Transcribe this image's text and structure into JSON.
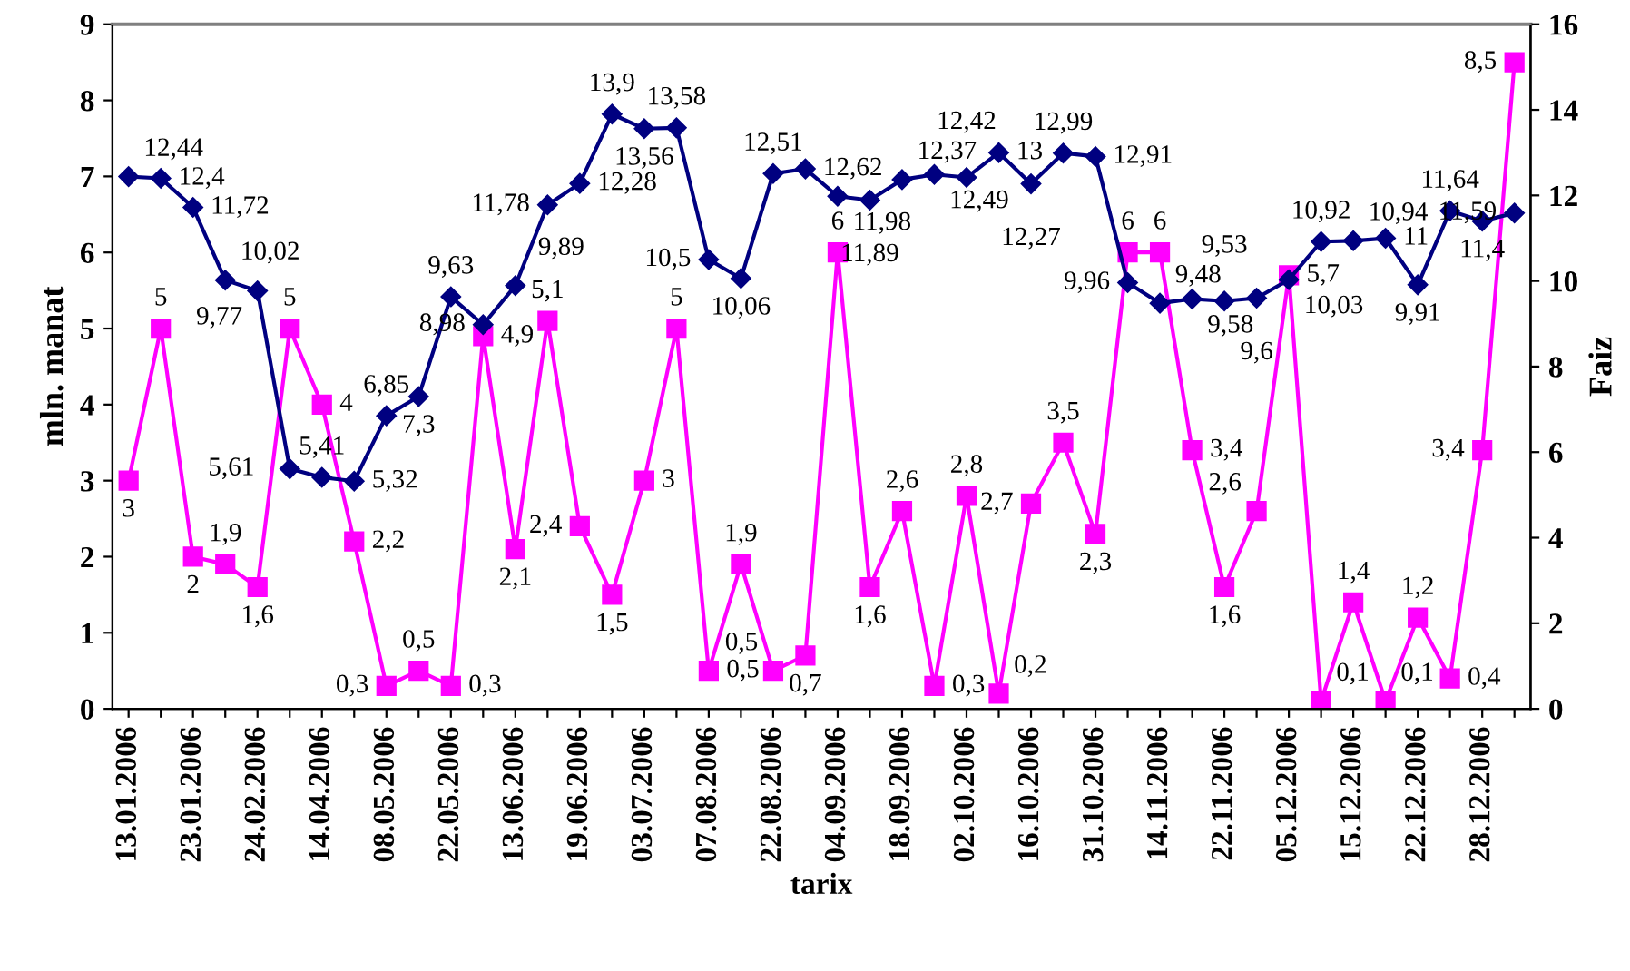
{
  "chart_data": {
    "type": "line",
    "xlabel": "tarix",
    "ylabel": "mln. manat",
    "y2label": "Faiz",
    "categories": [
      "13.01.2006",
      null,
      "23.01.2006",
      null,
      "24.02.2006",
      null,
      "14.04.2006",
      null,
      "08.05.2006",
      null,
      "22.05.2006",
      null,
      "13.06.2006",
      null,
      "19.06.2006",
      null,
      "03.07.2006",
      null,
      "07.08.2006",
      null,
      "22.08.2006",
      null,
      "04.09.2006",
      null,
      "18.09.2006",
      null,
      "02.10.2006",
      null,
      "16.10.2006",
      null,
      "31.10.2006",
      null,
      "14.11.2006",
      null,
      "22.11.2006",
      null,
      "05.12.2006",
      null,
      "15.12.2006",
      null,
      "22.12.2006",
      null,
      "28.12.2006",
      null
    ],
    "series": [
      {
        "color": "#ff00ff",
        "marker": "square",
        "values": [
          3,
          5,
          2,
          1.9,
          1.6,
          5,
          4,
          2.2,
          0.3,
          0.5,
          0.3,
          4.9,
          2.1,
          5.1,
          2.4,
          1.5,
          3,
          5,
          0.5,
          1.9,
          0.5,
          0.7,
          6,
          1.6,
          2.6,
          0.3,
          2.8,
          0.2,
          2.7,
          3.5,
          2.3,
          6,
          6,
          3.4,
          1.6,
          2.6,
          5.7,
          0.1,
          1.4,
          0.1,
          1.2,
          0.4,
          3.4,
          8.5
        ],
        "value_labels": [
          "3",
          "5",
          "2",
          "1,9",
          "1,6",
          "5",
          "4",
          "2,2",
          "0,3",
          "0,5",
          "0,3",
          "4,9",
          "2,1",
          "5,1",
          "2,4",
          "1,5",
          "3",
          "5",
          "0,5",
          "1,9",
          "0,5",
          "0,7",
          "6",
          "1,6",
          "2,6",
          "0,3",
          "2,8",
          "0,2",
          "2,7",
          "3,5",
          "2,3",
          "6",
          "6",
          "3,4",
          "1,6",
          "2,6",
          "5,7",
          "0,1",
          "1,4",
          "0,1",
          "1,2",
          "0,4",
          "3,4",
          "8,5"
        ]
      },
      {
        "color": "#000080",
        "marker": "diamond",
        "axis": "y2",
        "values": [
          12.44,
          12.4,
          11.72,
          10.02,
          9.77,
          5.61,
          5.41,
          5.32,
          6.85,
          7.3,
          9.63,
          8.98,
          9.89,
          11.78,
          12.28,
          13.9,
          13.56,
          13.58,
          10.5,
          10.06,
          12.51,
          12.62,
          11.98,
          11.89,
          12.37,
          12.49,
          12.42,
          13,
          12.27,
          12.99,
          12.91,
          9.96,
          9.48,
          9.58,
          9.53,
          9.6,
          10.03,
          10.92,
          10.94,
          11,
          9.91,
          11.64,
          11.4,
          11.59
        ],
        "value_labels": [
          "12,44",
          "12,4",
          "11,72",
          "10,02",
          "9,77",
          "5,61",
          "5,41",
          "5,32",
          "6,85",
          "7,3",
          "9,63",
          "8,98",
          "9,89",
          "11,78",
          "12,28",
          "13,9",
          "13,56",
          "13,58",
          "10,5",
          "10,06",
          "12,51",
          "12,62",
          "11,98",
          "11,89",
          "12,37",
          "12,49",
          "12,42",
          "13",
          "12,27",
          "12,99",
          "12,91",
          "9,96",
          "9,48",
          "9,58",
          "9,53",
          "9,6",
          "10,03",
          "10,92",
          "10,94",
          "11",
          "9,91",
          "11,64",
          "11,4",
          "11,59"
        ]
      }
    ],
    "ylim": [
      0,
      9
    ],
    "yticks": [
      0,
      1,
      2,
      3,
      4,
      5,
      6,
      7,
      8,
      9
    ],
    "y2lim": [
      0,
      16
    ],
    "y2ticks": [
      0,
      2,
      4,
      6,
      8,
      10,
      12,
      14,
      16
    ],
    "line_style": "solid",
    "grid": false,
    "legend": false
  }
}
